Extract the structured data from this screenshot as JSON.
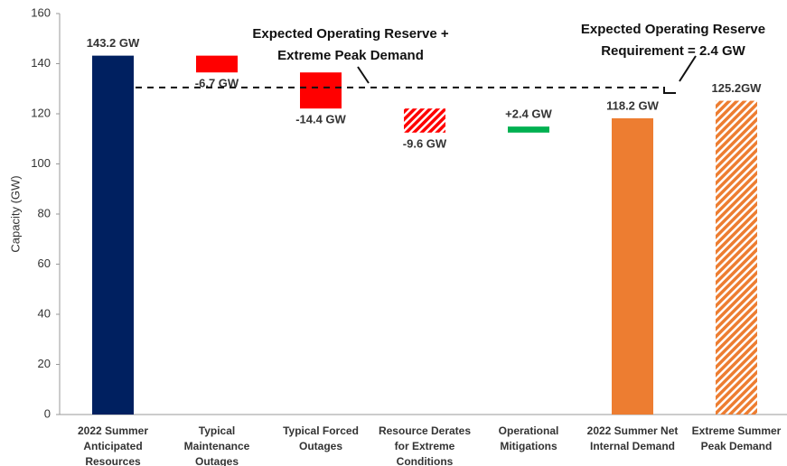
{
  "chart_data": {
    "type": "waterfall",
    "y_label": "Capacity (GW)",
    "categories": [
      [
        "2022 Summer",
        "Anticipated",
        "Resources"
      ],
      [
        "Typical",
        "Maintenance",
        "Outages"
      ],
      [
        "Typical Forced",
        "Outages"
      ],
      [
        "Resource Derates",
        "for Extreme",
        "Conditions"
      ],
      [
        "Operational",
        "Mitigations"
      ],
      [
        "2022 Summer Net",
        "Internal Demand"
      ],
      [
        "Extreme Summer",
        "Peak Demand"
      ]
    ],
    "values": [
      143.2,
      -6.7,
      -14.4,
      -9.6,
      2.4,
      118.2,
      125.2
    ],
    "value_labels": [
      "143.2 GW",
      "-6.7 GW",
      "-14.4 GW",
      "-9.6 GW",
      "+2.4 GW",
      "118.2 GW",
      "125.2GW"
    ],
    "measure": [
      "absolute",
      "relative",
      "relative",
      "relative",
      "relative",
      "absolute",
      "absolute"
    ],
    "colors": [
      "#002060",
      "#ff0000",
      "#ff0000",
      "#ff0000",
      "#00b050",
      "#ed7d31",
      "#ed7d31"
    ],
    "hatched": [
      false,
      false,
      false,
      true,
      false,
      false,
      true
    ],
    "reference_line": 130.5,
    "annotations": [
      [
        "Expected Operating Reserve +",
        "Extreme Peak Demand"
      ],
      [
        "Expected Operating Reserve",
        "Requirement = 2.4 GW"
      ]
    ],
    "ylim": [
      0,
      160
    ],
    "yticks": [
      0,
      20,
      40,
      60,
      80,
      100,
      120,
      140,
      160
    ],
    "grid": false
  }
}
